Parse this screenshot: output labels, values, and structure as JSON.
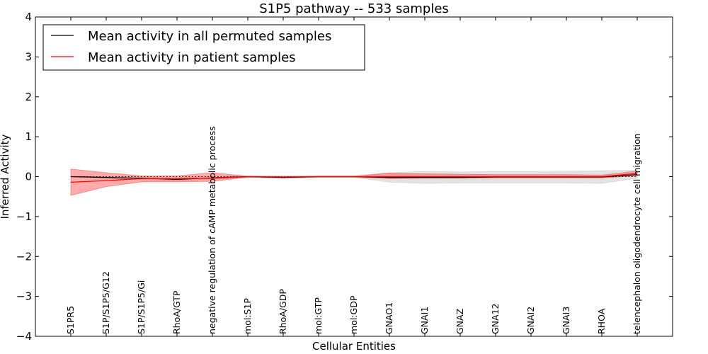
{
  "chart_data": {
    "type": "line",
    "title": "S1P5 pathway -- 533 samples",
    "xlabel": "Cellular Entities",
    "ylabel": "Inferred Activity",
    "ylim": [
      -4,
      4
    ],
    "yticks": [
      -4,
      -3,
      -2,
      -1,
      0,
      1,
      2,
      3,
      4
    ],
    "categories": [
      "S1PR5",
      "S1P/S1P5/G12",
      "S1P/S1P5/Gi",
      "RhoA/GTP",
      "negative regulation of cAMP metabolic process",
      "mol:S1P",
      "RhoA/GDP",
      "mol:GTP",
      "mol:GDP",
      "GNAO1",
      "GNAI1",
      "GNAZ",
      "GNA12",
      "GNAI2",
      "GNAI3",
      "RHOA",
      "telencephalon oligodendrocyte cell migration"
    ],
    "series": [
      {
        "name": "Mean activity in all permuted samples",
        "color": "#000000",
        "values": [
          0.0,
          -0.02,
          -0.04,
          -0.07,
          -0.03,
          0.0,
          -0.02,
          0.0,
          0.0,
          -0.02,
          -0.02,
          -0.02,
          -0.01,
          -0.01,
          -0.01,
          -0.01,
          0.05
        ],
        "band_low": [
          -0.01,
          -0.04,
          -0.08,
          -0.11,
          -0.07,
          -0.02,
          -0.04,
          -0.02,
          -0.02,
          -0.14,
          -0.17,
          -0.16,
          -0.16,
          -0.16,
          -0.16,
          -0.17,
          -0.04
        ],
        "band_high": [
          0.01,
          0.0,
          0.0,
          -0.03,
          0.01,
          0.02,
          0.0,
          0.02,
          0.02,
          0.1,
          0.13,
          0.12,
          0.13,
          0.13,
          0.14,
          0.15,
          0.16
        ],
        "band_color": "#cccccc"
      },
      {
        "name": "Mean activity in patient samples",
        "color": "#ff0000",
        "values": [
          -0.14,
          -0.1,
          -0.05,
          -0.05,
          -0.04,
          0.0,
          -0.01,
          0.0,
          0.0,
          0.0,
          0.0,
          0.0,
          0.0,
          0.0,
          0.0,
          0.0,
          0.08
        ],
        "band_low": [
          -0.47,
          -0.25,
          -0.13,
          -0.13,
          -0.12,
          -0.01,
          -0.03,
          -0.01,
          -0.01,
          -0.05,
          -0.04,
          -0.04,
          -0.03,
          -0.03,
          -0.03,
          -0.03,
          0.02
        ],
        "band_high": [
          0.19,
          0.1,
          0.02,
          0.02,
          0.1,
          0.01,
          0.01,
          0.01,
          0.01,
          0.09,
          0.07,
          0.06,
          0.05,
          0.05,
          0.05,
          0.04,
          0.14
        ],
        "band_color": "#ff4444"
      }
    ],
    "reference_line": {
      "value": 0,
      "style": "dotted"
    },
    "legend_position": "top-left"
  }
}
